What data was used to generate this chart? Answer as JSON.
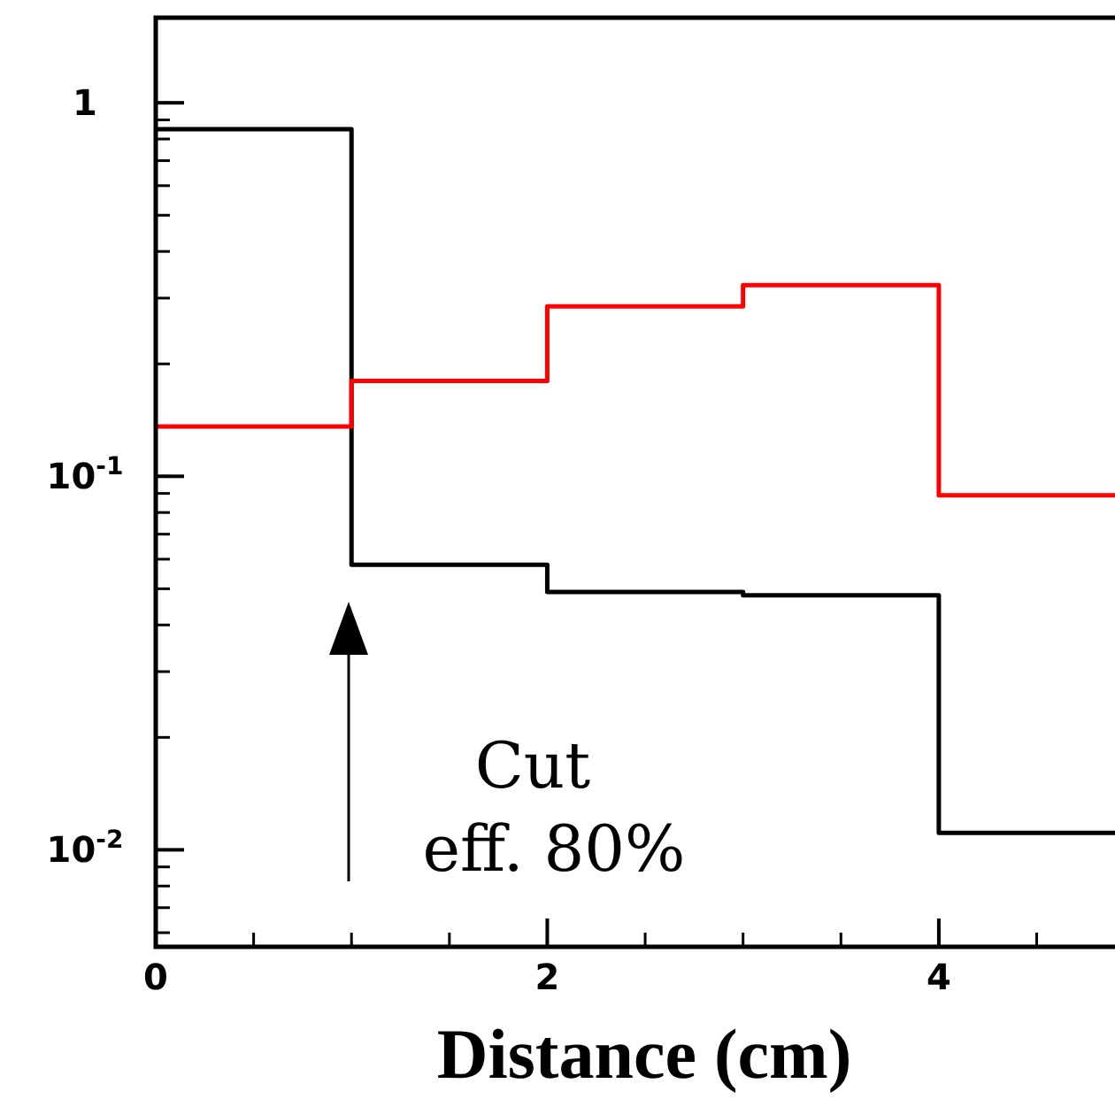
{
  "chart_data": {
    "type": "step",
    "xlabel": "Distance (cm)",
    "x": [
      0,
      1,
      2,
      3,
      4,
      4.9
    ],
    "series": [
      {
        "color": "#000000",
        "values": [
          0.85,
          0.058,
          0.049,
          0.048,
          0.0111,
          0.0111
        ]
      },
      {
        "color": "#ff0000",
        "values": [
          0.136,
          0.18,
          0.285,
          0.325,
          0.089,
          0.089
        ]
      }
    ],
    "log": "y",
    "xlim": [
      0,
      4.9
    ],
    "ylim": [
      0.0055,
      1.69
    ],
    "xticks": [
      0,
      2,
      4
    ],
    "yticks": [
      1,
      {
        "value": 0.1,
        "label": "10$^{-1}$"
      },
      {
        "value": 0.01,
        "label": "10$^{-2}$"
      }
    ],
    "annotations": [
      "Cut",
      "eff. 80%"
    ]
  }
}
